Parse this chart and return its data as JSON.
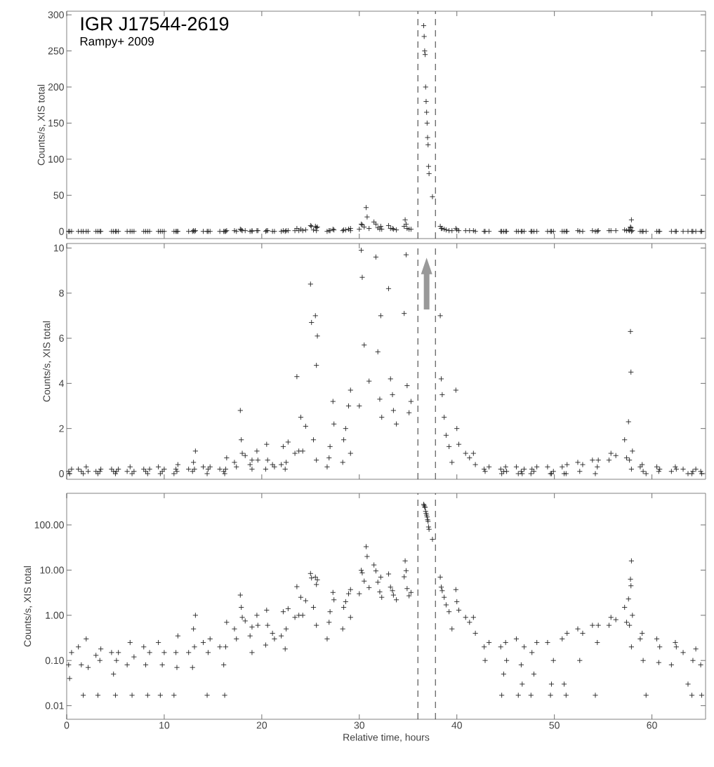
{
  "chart_data": [
    {
      "type": "scatter",
      "title": "IGR J17544-2619",
      "subtitle": "Rampy+ 2009",
      "ylabel": "Counts/s, XIS total",
      "marker": "cross",
      "color": "#222222",
      "tick_labels": "y",
      "xlim": [
        0,
        65.5
      ],
      "xticks": [
        0,
        10,
        20,
        30,
        40,
        50,
        60
      ],
      "ylim": [
        -10,
        305
      ],
      "yticks": [
        0,
        50,
        100,
        150,
        200,
        250,
        300
      ],
      "ref_lines": [
        {
          "axis": "x",
          "value": 36.0,
          "line_style": "dashed"
        },
        {
          "axis": "x",
          "value": 37.8,
          "line_style": "dashed"
        }
      ],
      "x": [
        0.2,
        0.3,
        0.5,
        1.2,
        1.5,
        1.7,
        2.0,
        2.2,
        3.0,
        3.2,
        3.4,
        3.5,
        4.6,
        4.8,
        5.0,
        5.1,
        5.3,
        6.2,
        6.5,
        6.7,
        6.9,
        7.9,
        8.1,
        8.3,
        8.5,
        9.4,
        9.6,
        9.8,
        10.0,
        11.0,
        11.2,
        11.3,
        11.4,
        12.5,
        12.9,
        13.0,
        13.1,
        13.2,
        14.0,
        14.4,
        14.5,
        14.7,
        15.7,
        16.1,
        16.2,
        16.3,
        16.4,
        17.2,
        17.4,
        17.8,
        17.9,
        18.0,
        18.3,
        18.8,
        19.0,
        19.0,
        19.5,
        19.6,
        20.4,
        20.5,
        20.6,
        21.1,
        21.3,
        22.0,
        22.2,
        22.4,
        22.5,
        22.7,
        23.4,
        23.6,
        23.8,
        24.0,
        24.2,
        24.5,
        25.0,
        25.1,
        25.3,
        25.5,
        25.6,
        25.7,
        25.6,
        26.7,
        26.9,
        27.0,
        27.3,
        27.4,
        28.3,
        28.4,
        28.6,
        28.9,
        29.1,
        29.1,
        30.0,
        30.2,
        30.3,
        30.5,
        30.7,
        30.8,
        31.0,
        31.5,
        31.7,
        31.9,
        32.1,
        32.2,
        32.3,
        33.0,
        33.2,
        33.4,
        33.5,
        33.8,
        34.6,
        34.7,
        34.8,
        34.9,
        35.1,
        35.3,
        36.6,
        36.65,
        36.7,
        36.75,
        36.8,
        36.85,
        36.9,
        36.95,
        37.0,
        37.05,
        37.1,
        37.15,
        37.5,
        38.3,
        38.4,
        38.5,
        38.7,
        38.9,
        39.2,
        39.5,
        39.9,
        40.0,
        40.2,
        40.9,
        41.3,
        41.7,
        41.9,
        42.8,
        42.9,
        43.3,
        44.5,
        44.6,
        44.8,
        45.0,
        45.1,
        46.1,
        46.3,
        46.6,
        46.7,
        46.9,
        47.6,
        47.7,
        47.9,
        48.2,
        49.3,
        49.6,
        49.7,
        49.9,
        50.8,
        51.0,
        51.2,
        51.3,
        52.4,
        52.6,
        52.9,
        53.9,
        54.2,
        54.4,
        54.5,
        55.6,
        55.8,
        56.3,
        57.2,
        57.4,
        57.6,
        57.7,
        57.8,
        57.85,
        57.9,
        57.9,
        58.0,
        58.8,
        59.0,
        59.1,
        59.4,
        60.5,
        60.7,
        60.8,
        62.0,
        62.4,
        62.5,
        63.2,
        63.7,
        64.1,
        64.2,
        64.5,
        65.0,
        65.1
      ],
      "values": [
        0,
        0,
        0,
        0,
        0,
        0,
        0,
        0,
        0,
        0,
        0,
        0,
        0,
        0,
        0,
        0,
        0,
        0,
        0,
        0,
        0,
        0,
        0,
        0,
        0,
        0,
        0,
        0,
        0,
        0,
        0,
        0,
        0,
        0,
        0,
        1,
        0,
        1,
        0,
        0,
        0,
        0,
        0,
        0,
        0,
        0,
        1,
        1,
        0,
        3,
        2,
        1,
        1,
        0,
        0,
        1,
        1,
        1,
        0,
        1,
        1,
        0,
        0,
        0,
        1,
        0,
        1,
        1,
        1,
        4,
        1,
        3,
        1,
        2,
        8,
        7,
        2,
        7,
        5,
        6,
        1,
        0,
        1,
        1,
        3,
        2,
        1,
        2,
        2,
        3,
        4,
        1,
        3,
        10,
        9,
        6,
        33,
        20,
        4,
        13,
        10,
        5,
        3,
        7,
        3,
        8,
        4,
        4,
        3,
        2,
        7,
        16,
        10,
        4,
        3,
        3,
        285,
        270,
        250,
        245,
        200,
        180,
        165,
        150,
        130,
        120,
        90,
        80,
        48,
        7,
        4,
        4,
        3,
        2,
        1,
        1,
        4,
        2,
        1,
        1,
        1,
        1,
        0,
        0,
        0,
        0,
        0,
        0,
        0,
        0,
        0,
        0,
        0,
        0,
        0,
        0,
        0,
        0,
        0,
        0,
        0,
        0,
        0,
        0,
        0,
        0,
        0,
        0,
        1,
        0,
        0,
        1,
        0,
        0,
        1,
        1,
        1,
        1,
        2,
        1,
        2,
        1,
        6,
        5,
        16,
        0,
        1,
        0,
        0,
        0,
        0,
        0,
        0,
        0,
        0,
        0,
        0,
        0,
        0,
        0,
        0,
        0,
        0,
        0
      ]
    },
    {
      "type": "scatter",
      "ylabel": "Counts/s, XIS total",
      "marker": "cross",
      "color": "#222222",
      "tick_labels": "y",
      "xlim": [
        0,
        65.5
      ],
      "xticks": [
        0,
        10,
        20,
        30,
        40,
        50,
        60
      ],
      "ylim": [
        -0.25,
        10.2
      ],
      "yticks": [
        0,
        2,
        4,
        6,
        8,
        10
      ],
      "ref_lines": [
        {
          "axis": "x",
          "value": 36.0,
          "line_style": "dashed"
        },
        {
          "axis": "x",
          "value": 37.8,
          "line_style": "dashed"
        }
      ],
      "x": [
        0.2,
        0.3,
        0.5,
        1.2,
        1.5,
        1.7,
        2.0,
        2.2,
        3.0,
        3.2,
        3.4,
        3.5,
        4.6,
        4.8,
        5.0,
        5.1,
        5.3,
        6.2,
        6.5,
        6.7,
        6.9,
        7.9,
        8.1,
        8.3,
        8.5,
        9.4,
        9.6,
        9.8,
        10.0,
        11.0,
        11.2,
        11.3,
        11.4,
        12.5,
        12.9,
        13.0,
        13.1,
        13.2,
        14.0,
        14.4,
        14.5,
        14.7,
        15.7,
        16.1,
        16.2,
        16.3,
        16.4,
        17.2,
        17.4,
        17.8,
        17.9,
        18.0,
        18.3,
        18.8,
        19.0,
        19.0,
        19.5,
        19.6,
        20.4,
        20.5,
        20.6,
        21.1,
        21.3,
        22.0,
        22.2,
        22.4,
        22.5,
        22.7,
        23.4,
        23.6,
        23.8,
        24.0,
        24.2,
        24.5,
        25.0,
        25.1,
        25.3,
        25.5,
        25.6,
        25.7,
        25.6,
        26.7,
        26.9,
        27.0,
        27.3,
        27.4,
        28.3,
        28.4,
        28.6,
        28.9,
        29.1,
        29.1,
        30.0,
        30.2,
        30.3,
        30.5,
        31.0,
        31.7,
        31.9,
        32.1,
        32.2,
        32.3,
        33.0,
        33.2,
        33.4,
        33.5,
        33.8,
        34.6,
        34.8,
        34.9,
        35.1,
        35.3,
        38.3,
        38.4,
        38.5,
        38.7,
        38.9,
        39.2,
        39.5,
        39.9,
        40.0,
        40.2,
        40.9,
        41.3,
        41.7,
        41.9,
        42.8,
        42.9,
        43.3,
        44.5,
        44.6,
        44.8,
        45.0,
        45.1,
        46.1,
        46.3,
        46.6,
        46.7,
        46.9,
        47.6,
        47.7,
        47.9,
        48.2,
        49.3,
        49.6,
        49.7,
        49.9,
        50.8,
        51.0,
        51.2,
        51.3,
        52.4,
        52.6,
        52.9,
        53.9,
        54.2,
        54.4,
        54.5,
        55.6,
        55.8,
        56.3,
        57.2,
        57.4,
        57.6,
        57.7,
        57.8,
        57.85,
        57.9,
        58.0,
        58.8,
        59.0,
        59.1,
        59.4,
        60.5,
        60.7,
        60.8,
        62.0,
        62.4,
        62.5,
        63.2,
        63.7,
        64.1,
        64.2,
        64.5,
        65.0,
        65.1
      ],
      "values": [
        0.1,
        0.0,
        0.2,
        0.2,
        0.1,
        0.0,
        0.3,
        0.1,
        0.1,
        0.0,
        0.1,
        0.2,
        0.2,
        0.1,
        0.0,
        0.1,
        0.2,
        0.1,
        0.3,
        0.0,
        0.1,
        0.2,
        0.1,
        0.0,
        0.2,
        0.3,
        0.0,
        0.1,
        0.2,
        0.0,
        0.2,
        0.1,
        0.4,
        0.2,
        0.1,
        0.5,
        0.2,
        1.0,
        0.3,
        0.0,
        0.2,
        0.3,
        0.2,
        0.1,
        0.0,
        0.2,
        0.7,
        0.5,
        0.3,
        2.8,
        1.5,
        0.9,
        0.8,
        0.4,
        0.2,
        0.6,
        1.0,
        0.6,
        0.2,
        1.3,
        0.6,
        0.4,
        0.3,
        0.4,
        1.2,
        0.2,
        0.5,
        1.4,
        0.9,
        4.3,
        1.0,
        2.5,
        1.0,
        2.1,
        8.4,
        6.7,
        1.5,
        7.0,
        4.8,
        6.1,
        0.6,
        0.3,
        0.7,
        1.2,
        3.2,
        2.2,
        0.5,
        1.5,
        2.0,
        3.0,
        3.7,
        0.9,
        3.0,
        9.9,
        8.7,
        5.7,
        4.1,
        9.6,
        5.4,
        3.3,
        7.0,
        2.5,
        8.2,
        4.2,
        3.5,
        2.8,
        2.2,
        7.1,
        9.7,
        3.9,
        2.7,
        3.2,
        7.0,
        4.2,
        3.5,
        2.5,
        1.7,
        1.2,
        0.5,
        3.7,
        2.0,
        1.3,
        0.9,
        0.7,
        0.9,
        0.4,
        0.2,
        0.1,
        0.3,
        0.2,
        0.0,
        0.1,
        0.3,
        0.1,
        0.3,
        0.0,
        0.1,
        0.0,
        0.2,
        0.0,
        0.2,
        0.1,
        0.3,
        0.3,
        0.0,
        0.0,
        0.1,
        0.3,
        0.0,
        0.0,
        0.4,
        0.5,
        0.1,
        0.4,
        0.6,
        0.0,
        0.3,
        0.6,
        0.6,
        0.9,
        0.8,
        1.5,
        0.7,
        2.3,
        0.6,
        6.3,
        4.5,
        0.2,
        1.0,
        0.3,
        0.4,
        0.1,
        0.0,
        0.3,
        0.1,
        0.2,
        0.1,
        0.3,
        0.2,
        0.2,
        0.0,
        0.0,
        0.1,
        0.2,
        0.1,
        0.0
      ]
    },
    {
      "type": "scatter",
      "xlabel": "Relative time, hours",
      "ylabel": "Counts/s, XIS total",
      "marker": "cross",
      "color": "#222222",
      "log": "y",
      "xlim": [
        0,
        65.5
      ],
      "xticks": [
        0,
        10,
        20,
        30,
        40,
        50,
        60
      ],
      "ylim": [
        0.005,
        500
      ],
      "yticks": [
        {
          "value": 0.01,
          "label": "0.01"
        },
        {
          "value": 0.1,
          "label": "0.10"
        },
        {
          "value": 1,
          "label": "1.00"
        },
        {
          "value": 10,
          "label": "10.00"
        },
        {
          "value": 100,
          "label": "100.00"
        }
      ],
      "ref_lines": [
        {
          "axis": "x",
          "value": 36.0,
          "line_style": "dashed"
        },
        {
          "axis": "x",
          "value": 37.8,
          "line_style": "dashed"
        }
      ],
      "x": [
        0.2,
        0.3,
        0.5,
        1.2,
        1.5,
        1.7,
        2.0,
        2.2,
        3.0,
        3.2,
        3.4,
        3.5,
        4.6,
        4.8,
        5.0,
        5.1,
        5.3,
        6.2,
        6.5,
        6.7,
        6.9,
        7.9,
        8.1,
        8.3,
        8.5,
        9.4,
        9.6,
        9.8,
        10.0,
        11.0,
        11.2,
        11.3,
        11.4,
        12.5,
        12.9,
        13.0,
        13.1,
        13.2,
        14.0,
        14.4,
        14.5,
        14.7,
        15.7,
        16.1,
        16.2,
        16.3,
        16.4,
        17.2,
        17.4,
        17.8,
        17.9,
        18.0,
        18.3,
        18.8,
        19.0,
        19.0,
        19.5,
        19.6,
        20.4,
        20.5,
        20.6,
        21.1,
        21.3,
        22.0,
        22.2,
        22.4,
        22.5,
        22.7,
        23.4,
        23.6,
        23.8,
        24.0,
        24.2,
        24.5,
        25.0,
        25.1,
        25.3,
        25.5,
        25.6,
        25.7,
        25.6,
        26.7,
        26.9,
        27.0,
        27.3,
        27.4,
        28.3,
        28.4,
        28.6,
        28.9,
        29.1,
        29.1,
        30.0,
        30.2,
        30.3,
        30.5,
        30.7,
        30.8,
        31.0,
        31.5,
        31.7,
        31.9,
        32.1,
        32.2,
        32.3,
        33.0,
        33.2,
        33.4,
        33.5,
        33.8,
        34.6,
        34.7,
        34.8,
        34.9,
        35.1,
        35.3,
        36.6,
        36.65,
        36.7,
        36.75,
        36.8,
        36.85,
        36.9,
        36.95,
        37.0,
        37.05,
        37.1,
        37.15,
        37.5,
        38.3,
        38.4,
        38.5,
        38.7,
        38.9,
        39.2,
        39.5,
        39.9,
        40.0,
        40.2,
        40.9,
        41.3,
        41.7,
        41.9,
        42.8,
        42.9,
        43.3,
        44.5,
        44.6,
        44.8,
        45.0,
        45.1,
        46.1,
        46.3,
        46.6,
        46.7,
        46.9,
        47.6,
        47.7,
        47.9,
        48.2,
        49.3,
        49.6,
        49.7,
        49.9,
        50.8,
        51.0,
        51.2,
        51.3,
        52.4,
        52.6,
        52.9,
        53.9,
        54.2,
        54.4,
        54.5,
        55.6,
        55.8,
        56.3,
        57.2,
        57.4,
        57.6,
        57.7,
        57.8,
        57.85,
        57.9,
        57.9,
        58.0,
        58.8,
        59.0,
        59.1,
        59.4,
        60.5,
        60.7,
        60.8,
        62.0,
        62.4,
        62.5,
        63.2,
        63.7,
        64.1,
        64.2,
        64.5,
        65.0,
        65.1
      ],
      "values": [
        0.08,
        0.04,
        0.15,
        0.2,
        0.08,
        0.017,
        0.3,
        0.07,
        0.13,
        0.017,
        0.1,
        0.18,
        0.15,
        0.05,
        0.017,
        0.1,
        0.15,
        0.08,
        0.25,
        0.017,
        0.12,
        0.2,
        0.08,
        0.017,
        0.15,
        0.25,
        0.017,
        0.08,
        0.15,
        0.017,
        0.15,
        0.07,
        0.35,
        0.15,
        0.07,
        0.5,
        0.2,
        1.0,
        0.25,
        0.017,
        0.15,
        0.3,
        0.2,
        0.08,
        0.017,
        0.2,
        0.7,
        0.5,
        0.3,
        2.8,
        1.5,
        0.9,
        0.75,
        0.35,
        0.15,
        0.55,
        1.0,
        0.6,
        0.22,
        1.3,
        0.6,
        0.4,
        0.3,
        0.35,
        1.2,
        0.18,
        0.5,
        1.4,
        0.9,
        4.3,
        1.0,
        2.5,
        1.0,
        2.1,
        8.4,
        6.7,
        1.5,
        7.0,
        4.8,
        6.1,
        0.6,
        0.3,
        0.7,
        1.2,
        3.2,
        2.2,
        0.5,
        1.5,
        2.0,
        3.0,
        3.7,
        0.9,
        3.0,
        9.9,
        8.7,
        5.7,
        33,
        20,
        4.1,
        13,
        9.6,
        5.4,
        3.3,
        7.0,
        2.5,
        8.2,
        4.2,
        3.5,
        2.8,
        2.2,
        7.1,
        16,
        9.7,
        3.9,
        2.7,
        3.2,
        285,
        270,
        250,
        245,
        200,
        180,
        165,
        150,
        130,
        120,
        90,
        80,
        48,
        7.0,
        4.2,
        3.5,
        2.5,
        1.7,
        1.2,
        0.5,
        3.7,
        2.0,
        1.3,
        0.9,
        0.7,
        0.9,
        0.4,
        0.2,
        0.1,
        0.25,
        0.2,
        0.017,
        0.05,
        0.25,
        0.1,
        0.3,
        0.017,
        0.08,
        0.03,
        0.2,
        0.017,
        0.15,
        0.05,
        0.25,
        0.25,
        0.017,
        0.03,
        0.1,
        0.3,
        0.03,
        0.017,
        0.4,
        0.5,
        0.1,
        0.4,
        0.6,
        0.017,
        0.25,
        0.6,
        0.6,
        0.9,
        0.8,
        1.5,
        0.7,
        2.3,
        0.6,
        6.3,
        4.5,
        16,
        0.2,
        1.0,
        0.3,
        0.4,
        0.1,
        0.017,
        0.3,
        0.09,
        0.2,
        0.08,
        0.25,
        0.2,
        0.15,
        0.03,
        0.017,
        0.1,
        0.18,
        0.08,
        0.017
      ]
    }
  ]
}
